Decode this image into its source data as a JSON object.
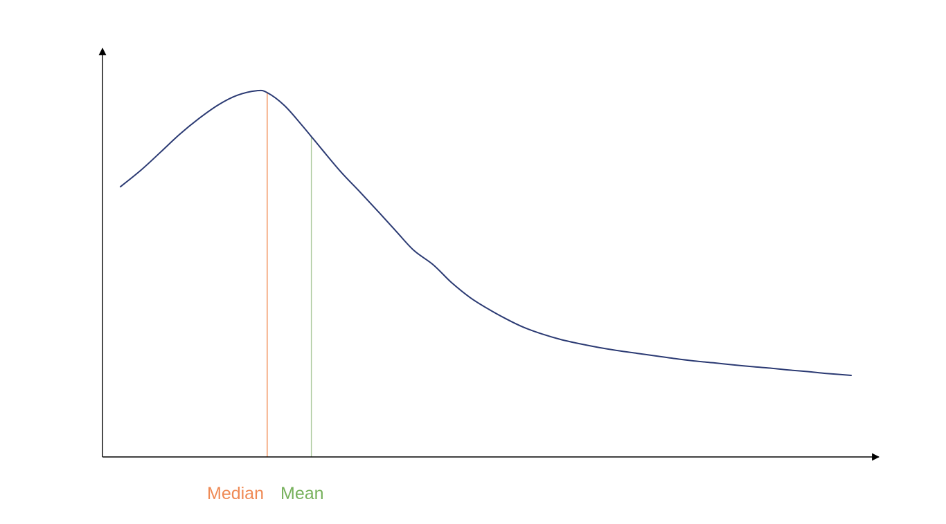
{
  "chart_data": {
    "type": "line",
    "title": "",
    "xlabel": "",
    "ylabel": "",
    "xlim": [
      0,
      100
    ],
    "ylim": [
      0,
      100
    ],
    "grid": false,
    "axis_ticks": false,
    "series": [
      {
        "color": "#2b3a73",
        "x": [
          2.4,
          5.1,
          7.7,
          10.3,
          12.9,
          15.5,
          18.0,
          20.6,
          22.0,
          24.3,
          26.6,
          29.2,
          31.8,
          34.4,
          36.9,
          39.3,
          41.6,
          44.2,
          46.6,
          49.1,
          51.6,
          53.9,
          56.2,
          58.7,
          61.3,
          63.8,
          66.4,
          68.9,
          71.4,
          74.0,
          76.5,
          79.0,
          81.6,
          84.1,
          86.7,
          89.2,
          91.7,
          94.2,
          96.7,
          100.0
        ],
        "y": [
          71.2,
          75.5,
          80.2,
          85.0,
          89.2,
          92.8,
          95.3,
          96.5,
          96.0,
          92.6,
          87.5,
          81.3,
          75.2,
          69.8,
          64.5,
          59.3,
          54.4,
          50.6,
          46.0,
          42.0,
          38.9,
          36.4,
          34.2,
          32.4,
          30.9,
          29.8,
          28.8,
          28.0,
          27.3,
          26.6,
          25.9,
          25.3,
          24.8,
          24.3,
          23.8,
          23.4,
          22.9,
          22.5,
          22.0,
          21.5
        ]
      }
    ],
    "markers": [
      {
        "label": "Median",
        "x": 22.0,
        "color": "#f0905a",
        "label_color": "#ef8a55"
      },
      {
        "label": "Mean",
        "x": 27.9,
        "color": "#a9c79a",
        "label_color": "#77b15c"
      }
    ],
    "axis_color": "#000000"
  }
}
